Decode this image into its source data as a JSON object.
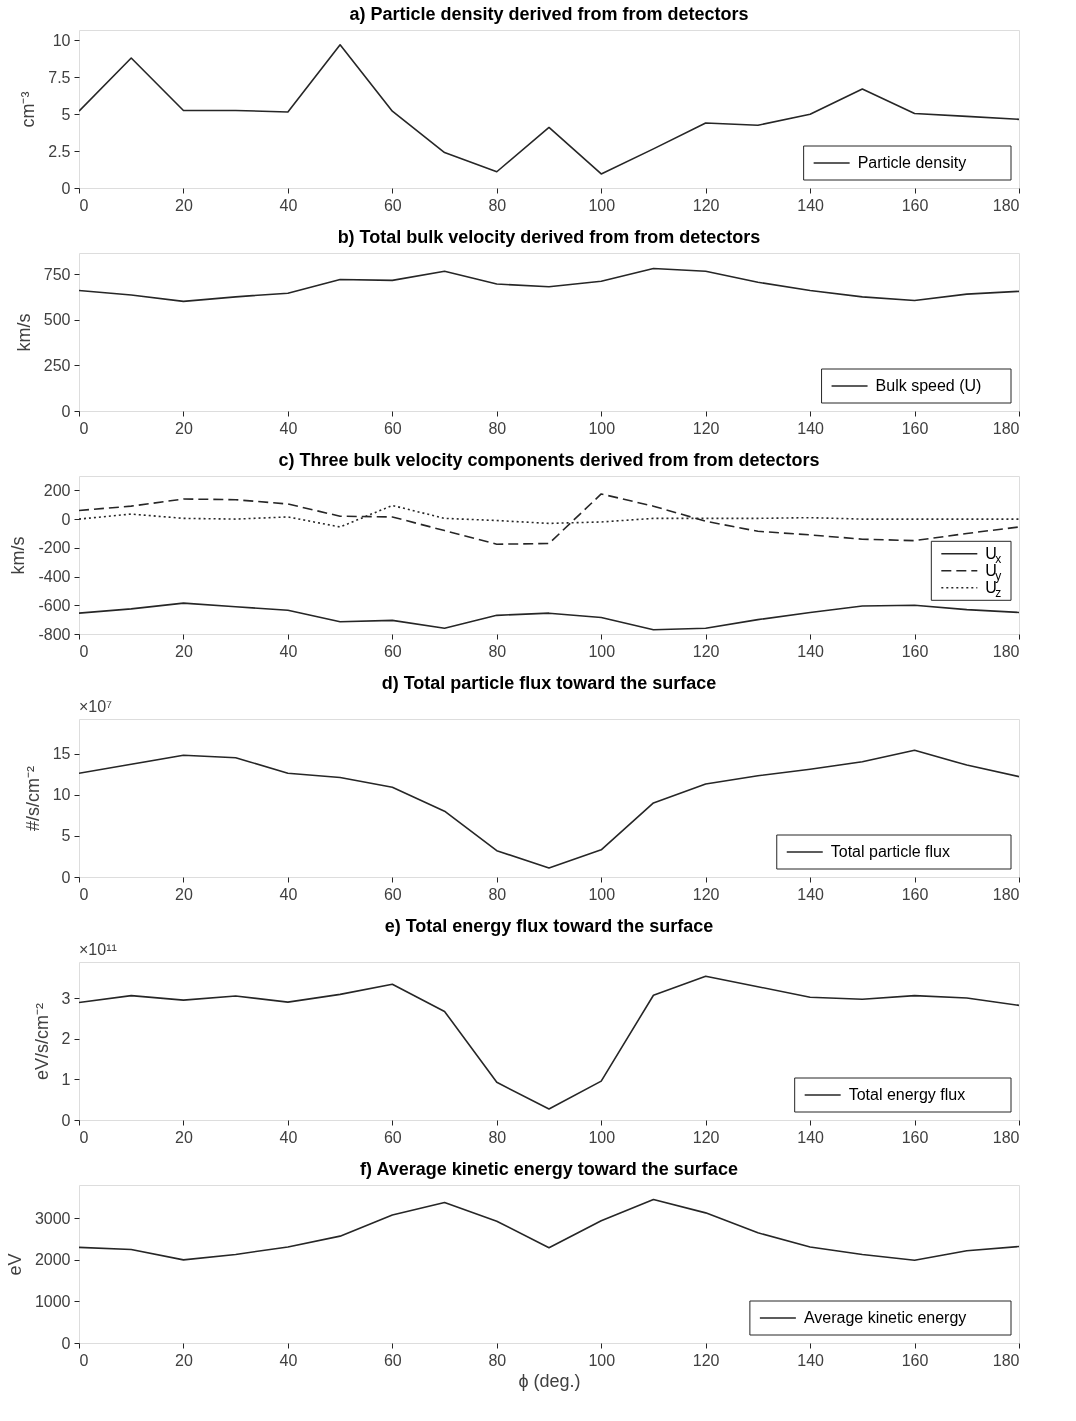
{
  "chart_data": [
    {
      "type": "line",
      "title": "a) Particle density derived from from detectors",
      "ylabel": "cm⁻³",
      "x": [
        0,
        10,
        20,
        30,
        40,
        50,
        60,
        70,
        80,
        90,
        100,
        110,
        120,
        130,
        140,
        150,
        160,
        170,
        180
      ],
      "xlim": [
        0,
        180
      ],
      "xticks": [
        0,
        20,
        40,
        60,
        80,
        100,
        120,
        140,
        160,
        180
      ],
      "ylim": [
        0,
        10.7
      ],
      "yticks": [
        0,
        2.5,
        5,
        7.5,
        10
      ],
      "legend": "bottom right",
      "grid": false,
      "series": [
        {
          "name": "Particle density",
          "color": "#262626",
          "line_style": "solid",
          "values": [
            5.2,
            8.8,
            5.25,
            5.25,
            5.15,
            9.7,
            5.2,
            2.4,
            1.1,
            4.1,
            0.95,
            2.65,
            4.4,
            4.25,
            5.0,
            6.7,
            5.05,
            4.85,
            4.65
          ]
        }
      ]
    },
    {
      "type": "line",
      "title": "b) Total bulk velocity derived from from detectors",
      "ylabel": "km/s",
      "x": [
        0,
        10,
        20,
        30,
        40,
        50,
        60,
        70,
        80,
        90,
        100,
        110,
        120,
        130,
        140,
        150,
        160,
        170,
        180
      ],
      "xlim": [
        0,
        180
      ],
      "xticks": [
        0,
        20,
        40,
        60,
        80,
        100,
        120,
        140,
        160,
        180
      ],
      "ylim": [
        0,
        865
      ],
      "yticks": [
        0,
        250,
        500,
        750
      ],
      "legend": "bottom right",
      "grid": false,
      "series": [
        {
          "name": "Bulk speed (U)",
          "color": "#262626",
          "line_style": "solid",
          "values": [
            660,
            635,
            600,
            625,
            645,
            720,
            715,
            765,
            695,
            680,
            710,
            780,
            765,
            705,
            660,
            625,
            605,
            640,
            655
          ]
        }
      ]
    },
    {
      "type": "line",
      "title": "c) Three bulk velocity components derived from from detectors",
      "ylabel": "km/s",
      "x": [
        0,
        10,
        20,
        30,
        40,
        50,
        60,
        70,
        80,
        90,
        100,
        110,
        120,
        130,
        140,
        150,
        160,
        170,
        180
      ],
      "xlim": [
        0,
        180
      ],
      "xticks": [
        0,
        20,
        40,
        60,
        80,
        100,
        120,
        140,
        160,
        180
      ],
      "ylim": [
        -800,
        300
      ],
      "yticks": [
        -800,
        -600,
        -400,
        -200,
        0,
        200
      ],
      "legend": "right",
      "grid": false,
      "series": [
        {
          "name": "U$_{x}$",
          "color": "#262626",
          "line_style": "solid",
          "values": [
            -655,
            -625,
            -585,
            -610,
            -635,
            -715,
            -705,
            -760,
            -670,
            -655,
            -685,
            -770,
            -760,
            -700,
            -650,
            -605,
            -600,
            -630,
            -650
          ]
        },
        {
          "name": "U$_{y}$",
          "color": "#262626",
          "line_style": "dashed",
          "values": [
            60,
            90,
            140,
            135,
            105,
            20,
            15,
            -80,
            -175,
            -170,
            175,
            90,
            -15,
            -85,
            -110,
            -140,
            -150,
            -100,
            -55
          ]
        },
        {
          "name": "U$_{z}$",
          "color": "#262626",
          "line_style": "dotted",
          "values": [
            0,
            35,
            5,
            0,
            15,
            -55,
            95,
            5,
            -10,
            -30,
            -20,
            5,
            5,
            5,
            10,
            0,
            0,
            0,
            0
          ]
        }
      ]
    },
    {
      "type": "line",
      "title": "d) Total particle flux toward the surface",
      "ylabel": "#/s/cm⁻²",
      "annotations": [
        "×10⁷"
      ],
      "x": [
        0,
        10,
        20,
        30,
        40,
        50,
        60,
        70,
        80,
        90,
        100,
        110,
        120,
        130,
        140,
        150,
        160,
        170,
        180
      ],
      "xlim": [
        0,
        180
      ],
      "xticks": [
        0,
        20,
        40,
        60,
        80,
        100,
        120,
        140,
        160,
        180
      ],
      "ylim": [
        0,
        19.2
      ],
      "yticks": [
        0,
        5,
        10,
        15
      ],
      "legend": "bottom right",
      "grid": false,
      "series": [
        {
          "name": "Total particle flux",
          "color": "#262626",
          "line_style": "solid",
          "values": [
            12.6,
            13.7,
            14.8,
            14.5,
            12.6,
            12.1,
            10.9,
            8.0,
            3.2,
            1.1,
            3.3,
            9.0,
            11.3,
            12.3,
            13.1,
            14.0,
            15.4,
            13.6,
            12.2
          ]
        }
      ]
    },
    {
      "type": "line",
      "title": "e) Total energy flux toward the surface",
      "ylabel": "eV/s/cm⁻²",
      "annotations": [
        "×10¹¹"
      ],
      "x": [
        0,
        10,
        20,
        30,
        40,
        50,
        60,
        70,
        80,
        90,
        100,
        110,
        120,
        130,
        140,
        150,
        160,
        170,
        180
      ],
      "xlim": [
        0,
        180
      ],
      "xticks": [
        0,
        20,
        40,
        60,
        80,
        100,
        120,
        140,
        160,
        180
      ],
      "ylim": [
        0,
        3.9
      ],
      "yticks": [
        0,
        1,
        2,
        3
      ],
      "legend": "bottom right",
      "grid": false,
      "series": [
        {
          "name": "Total energy flux",
          "color": "#262626",
          "line_style": "solid",
          "values": [
            2.9,
            3.07,
            2.96,
            3.06,
            2.91,
            3.1,
            3.35,
            2.68,
            0.93,
            0.27,
            0.96,
            3.08,
            3.55,
            3.29,
            3.03,
            2.98,
            3.07,
            3.01,
            2.83
          ]
        }
      ]
    },
    {
      "type": "line",
      "title": "f) Average kinetic energy toward the surface",
      "xlabel": "ϕ (deg.)",
      "ylabel": "eV",
      "x": [
        0,
        10,
        20,
        30,
        40,
        50,
        60,
        70,
        80,
        90,
        100,
        110,
        120,
        130,
        140,
        150,
        160,
        170,
        180
      ],
      "xlim": [
        0,
        180
      ],
      "xticks": [
        0,
        20,
        40,
        60,
        80,
        100,
        120,
        140,
        160,
        180
      ],
      "ylim": [
        0,
        3800
      ],
      "yticks": [
        0,
        1000,
        2000,
        3000
      ],
      "legend": "bottom right",
      "grid": false,
      "series": [
        {
          "name": "Average kinetic energy",
          "color": "#262626",
          "line_style": "solid",
          "values": [
            2300,
            2250,
            2000,
            2130,
            2310,
            2570,
            3080,
            3380,
            2930,
            2290,
            2940,
            3450,
            3130,
            2650,
            2310,
            2130,
            1990,
            2220,
            2320
          ]
        }
      ]
    }
  ]
}
